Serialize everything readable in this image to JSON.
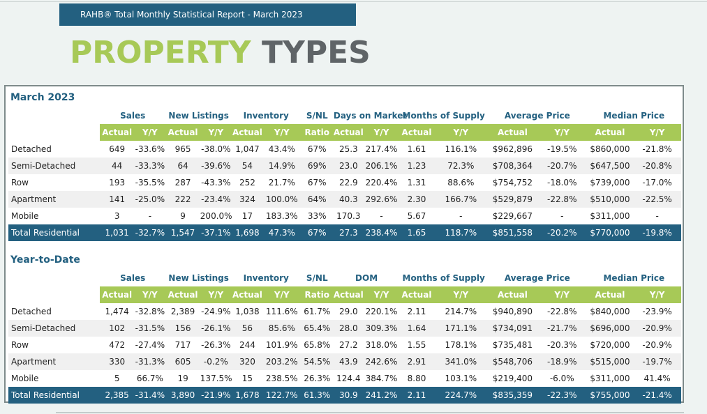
{
  "banner": "RAHB® Total Monthly Statistical Report - March 2023",
  "title": {
    "part1": "PROPERTY",
    "part2": "TYPES"
  },
  "march": {
    "title": "March 2023",
    "groups": [
      "Sales",
      "New Listings",
      "Inventory",
      "S/NL",
      "Days on Market",
      "Months of Supply",
      "Average Price",
      "Median Price"
    ],
    "subheaders": [
      "Actual",
      "Y/Y",
      "Actual",
      "Y/Y",
      "Actual",
      "Y/Y",
      "Ratio",
      "Actual",
      "Y/Y",
      "Actual",
      "Y/Y",
      "Actual",
      "Y/Y",
      "Actual",
      "Y/Y"
    ],
    "rows": [
      {
        "label": "Detached",
        "values": [
          "649",
          "-33.6%",
          "965",
          "-38.0%",
          "1,047",
          "43.4%",
          "67%",
          "25.3",
          "217.4%",
          "1.61",
          "116.1%",
          "$962,896",
          "-19.5%",
          "$860,000",
          "-21.8%"
        ]
      },
      {
        "label": "Semi-Detached",
        "values": [
          "44",
          "-33.3%",
          "64",
          "-39.6%",
          "54",
          "14.9%",
          "69%",
          "23.0",
          "206.1%",
          "1.23",
          "72.3%",
          "$708,364",
          "-20.7%",
          "$647,500",
          "-20.8%"
        ]
      },
      {
        "label": "Row",
        "values": [
          "193",
          "-35.5%",
          "287",
          "-43.3%",
          "252",
          "21.7%",
          "67%",
          "22.9",
          "220.4%",
          "1.31",
          "88.6%",
          "$754,752",
          "-18.0%",
          "$739,000",
          "-17.0%"
        ]
      },
      {
        "label": "Apartment",
        "values": [
          "141",
          "-25.0%",
          "222",
          "-23.4%",
          "324",
          "100.0%",
          "64%",
          "40.3",
          "292.6%",
          "2.30",
          "166.7%",
          "$529,879",
          "-22.8%",
          "$510,000",
          "-22.5%"
        ]
      },
      {
        "label": "Mobile",
        "values": [
          "3",
          "-",
          "9",
          "200.0%",
          "17",
          "183.3%",
          "33%",
          "170.3",
          "-",
          "5.67",
          "-",
          "$229,667",
          "-",
          "$311,000",
          "-"
        ]
      }
    ],
    "total": {
      "label": "Total Residential",
      "values": [
        "1,031",
        "-32.7%",
        "1,547",
        "-37.1%",
        "1,698",
        "47.3%",
        "67%",
        "27.3",
        "238.4%",
        "1.65",
        "118.7%",
        "$851,558",
        "-20.2%",
        "$770,000",
        "-19.8%"
      ]
    }
  },
  "ytd": {
    "title": "Year-to-Date",
    "groups": [
      "Sales",
      "New Listings",
      "Inventory",
      "S/NL",
      "DOM",
      "Months of Supply",
      "Average Price",
      "Median Price"
    ],
    "subheaders": [
      "Actual",
      "Y/Y",
      "Actual",
      "Y/Y",
      "Actual",
      "Y/Y",
      "Ratio",
      "Actual",
      "Y/Y",
      "Actual",
      "Y/Y",
      "Actual",
      "Y/Y",
      "Actual",
      "Y/Y"
    ],
    "rows": [
      {
        "label": "Detached",
        "values": [
          "1,474",
          "-32.8%",
          "2,389",
          "-24.9%",
          "1,038",
          "111.6%",
          "61.7%",
          "29.0",
          "220.1%",
          "2.11",
          "214.7%",
          "$940,890",
          "-22.8%",
          "$840,000",
          "-23.9%"
        ]
      },
      {
        "label": "Semi-Detached",
        "values": [
          "102",
          "-31.5%",
          "156",
          "-26.1%",
          "56",
          "85.6%",
          "65.4%",
          "28.0",
          "309.3%",
          "1.64",
          "171.1%",
          "$734,091",
          "-21.7%",
          "$696,000",
          "-20.9%"
        ]
      },
      {
        "label": "Row",
        "values": [
          "472",
          "-27.4%",
          "717",
          "-26.3%",
          "244",
          "101.9%",
          "65.8%",
          "27.2",
          "318.0%",
          "1.55",
          "178.1%",
          "$735,481",
          "-20.3%",
          "$720,000",
          "-20.9%"
        ]
      },
      {
        "label": "Apartment",
        "values": [
          "330",
          "-31.3%",
          "605",
          "-0.2%",
          "320",
          "203.2%",
          "54.5%",
          "43.9",
          "242.6%",
          "2.91",
          "341.0%",
          "$548,706",
          "-18.9%",
          "$515,000",
          "-19.7%"
        ]
      },
      {
        "label": "Mobile",
        "values": [
          "5",
          "66.7%",
          "19",
          "137.5%",
          "15",
          "238.5%",
          "26.3%",
          "124.4",
          "384.7%",
          "8.80",
          "103.1%",
          "$219,400",
          "-6.0%",
          "$311,000",
          "41.4%"
        ]
      }
    ],
    "total": {
      "label": "Total Residential",
      "values": [
        "2,385",
        "-31.4%",
        "3,890",
        "-21.9%",
        "1,678",
        "122.7%",
        "61.3%",
        "30.9",
        "241.2%",
        "2.11",
        "224.7%",
        "$835,359",
        "-22.3%",
        "$755,000",
        "-21.4%"
      ]
    }
  },
  "colors": {
    "navy": "#236080",
    "green": "#a7c957",
    "gray_title": "#5f6467"
  }
}
